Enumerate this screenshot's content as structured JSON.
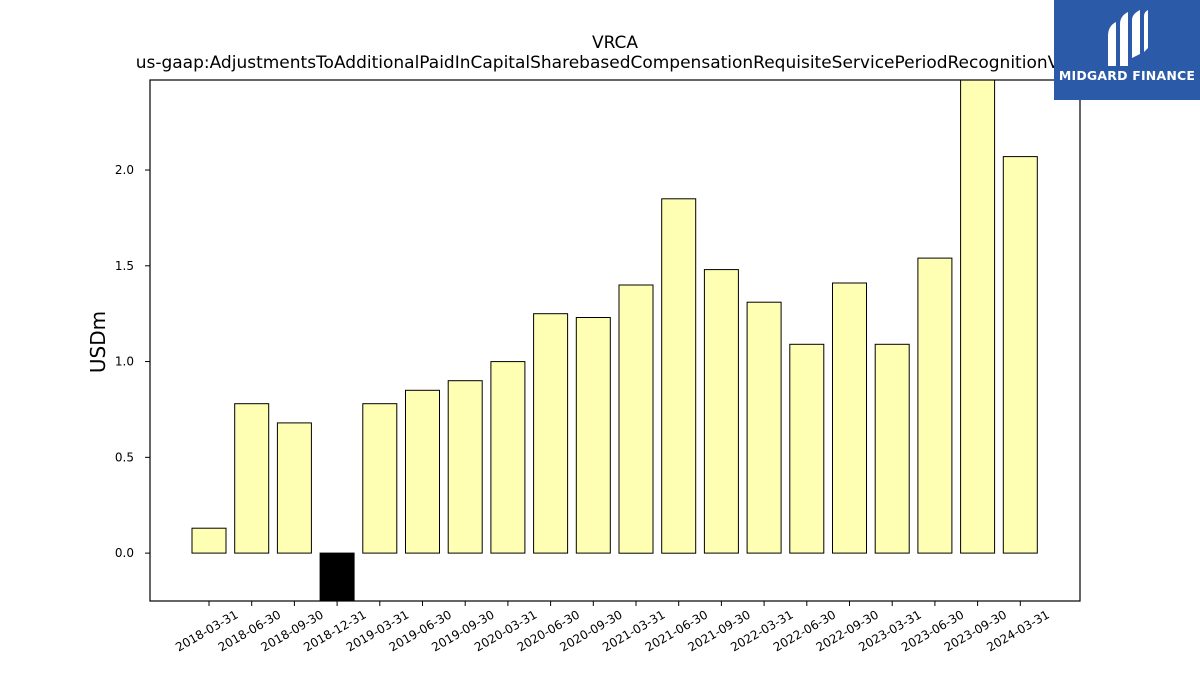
{
  "brand": {
    "name": "MIDGARD FINANCE",
    "color": "#2a5aa8",
    "icon": "midgard-logo-icon"
  },
  "chart_data": {
    "type": "bar",
    "title": "VRCA",
    "subtitle": "us-gaap:AdjustmentsToAdditionalPaidInCapitalSharebasedCompensationRequisiteServicePeriodRecognitionValue",
    "ylabel": "USDm",
    "xlabel": "",
    "ylim": [
      -0.25,
      2.47
    ],
    "yticks": [
      0.0,
      0.5,
      1.0,
      1.5,
      2.0
    ],
    "grid": false,
    "bar_color": "#ffffb3",
    "negative_bar_color": "#000000",
    "categories": [
      "2018-03-31",
      "2018-06-30",
      "2018-09-30",
      "2018-12-31",
      "2019-03-31",
      "2019-06-30",
      "2019-09-30",
      "2020-03-31",
      "2020-06-30",
      "2020-09-30",
      "2021-03-31",
      "2021-06-30",
      "2021-09-30",
      "2022-03-31",
      "2022-06-30",
      "2022-09-30",
      "2023-03-31",
      "2023-06-30",
      "2023-09-30",
      "2024-03-31"
    ],
    "values": [
      0.13,
      0.78,
      0.68,
      -0.27,
      0.78,
      0.85,
      0.9,
      1.0,
      1.25,
      1.23,
      1.4,
      1.85,
      1.48,
      1.31,
      1.09,
      1.41,
      1.09,
      1.54,
      2.49,
      2.07
    ]
  }
}
